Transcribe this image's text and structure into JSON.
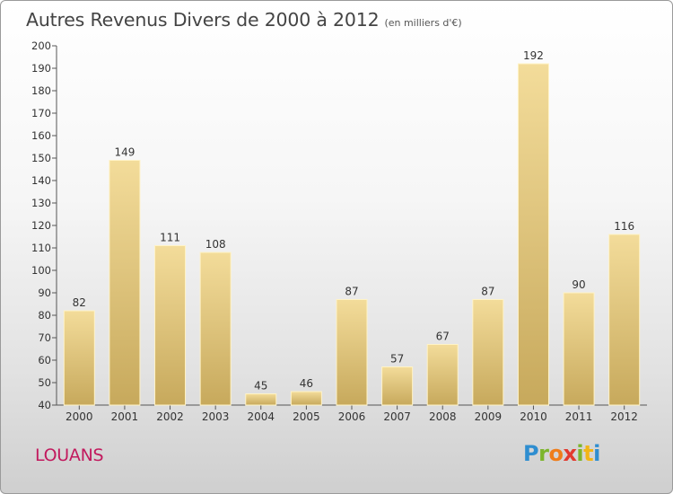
{
  "header": {
    "title": "Autres Revenus Divers de 2000 à 2012",
    "unit": "(en milliers d'€)"
  },
  "footer": {
    "commune": "LOUANS",
    "logo": "Proxiti"
  },
  "colors": {
    "bar_light": "#f3dc9a",
    "bar_dark": "#c7a95c",
    "commune": "#c2195d"
  },
  "chart_data": {
    "type": "bar",
    "categories": [
      "2000",
      "2001",
      "2002",
      "2003",
      "2004",
      "2005",
      "2006",
      "2007",
      "2008",
      "2009",
      "2010",
      "2011",
      "2012"
    ],
    "values": [
      82,
      149,
      111,
      108,
      45,
      46,
      87,
      57,
      67,
      87,
      192,
      90,
      116
    ],
    "ylim": [
      40,
      200
    ],
    "yticks": [
      40,
      50,
      60,
      70,
      80,
      90,
      100,
      110,
      120,
      130,
      140,
      150,
      160,
      170,
      180,
      190,
      200
    ],
    "grid": false
  }
}
